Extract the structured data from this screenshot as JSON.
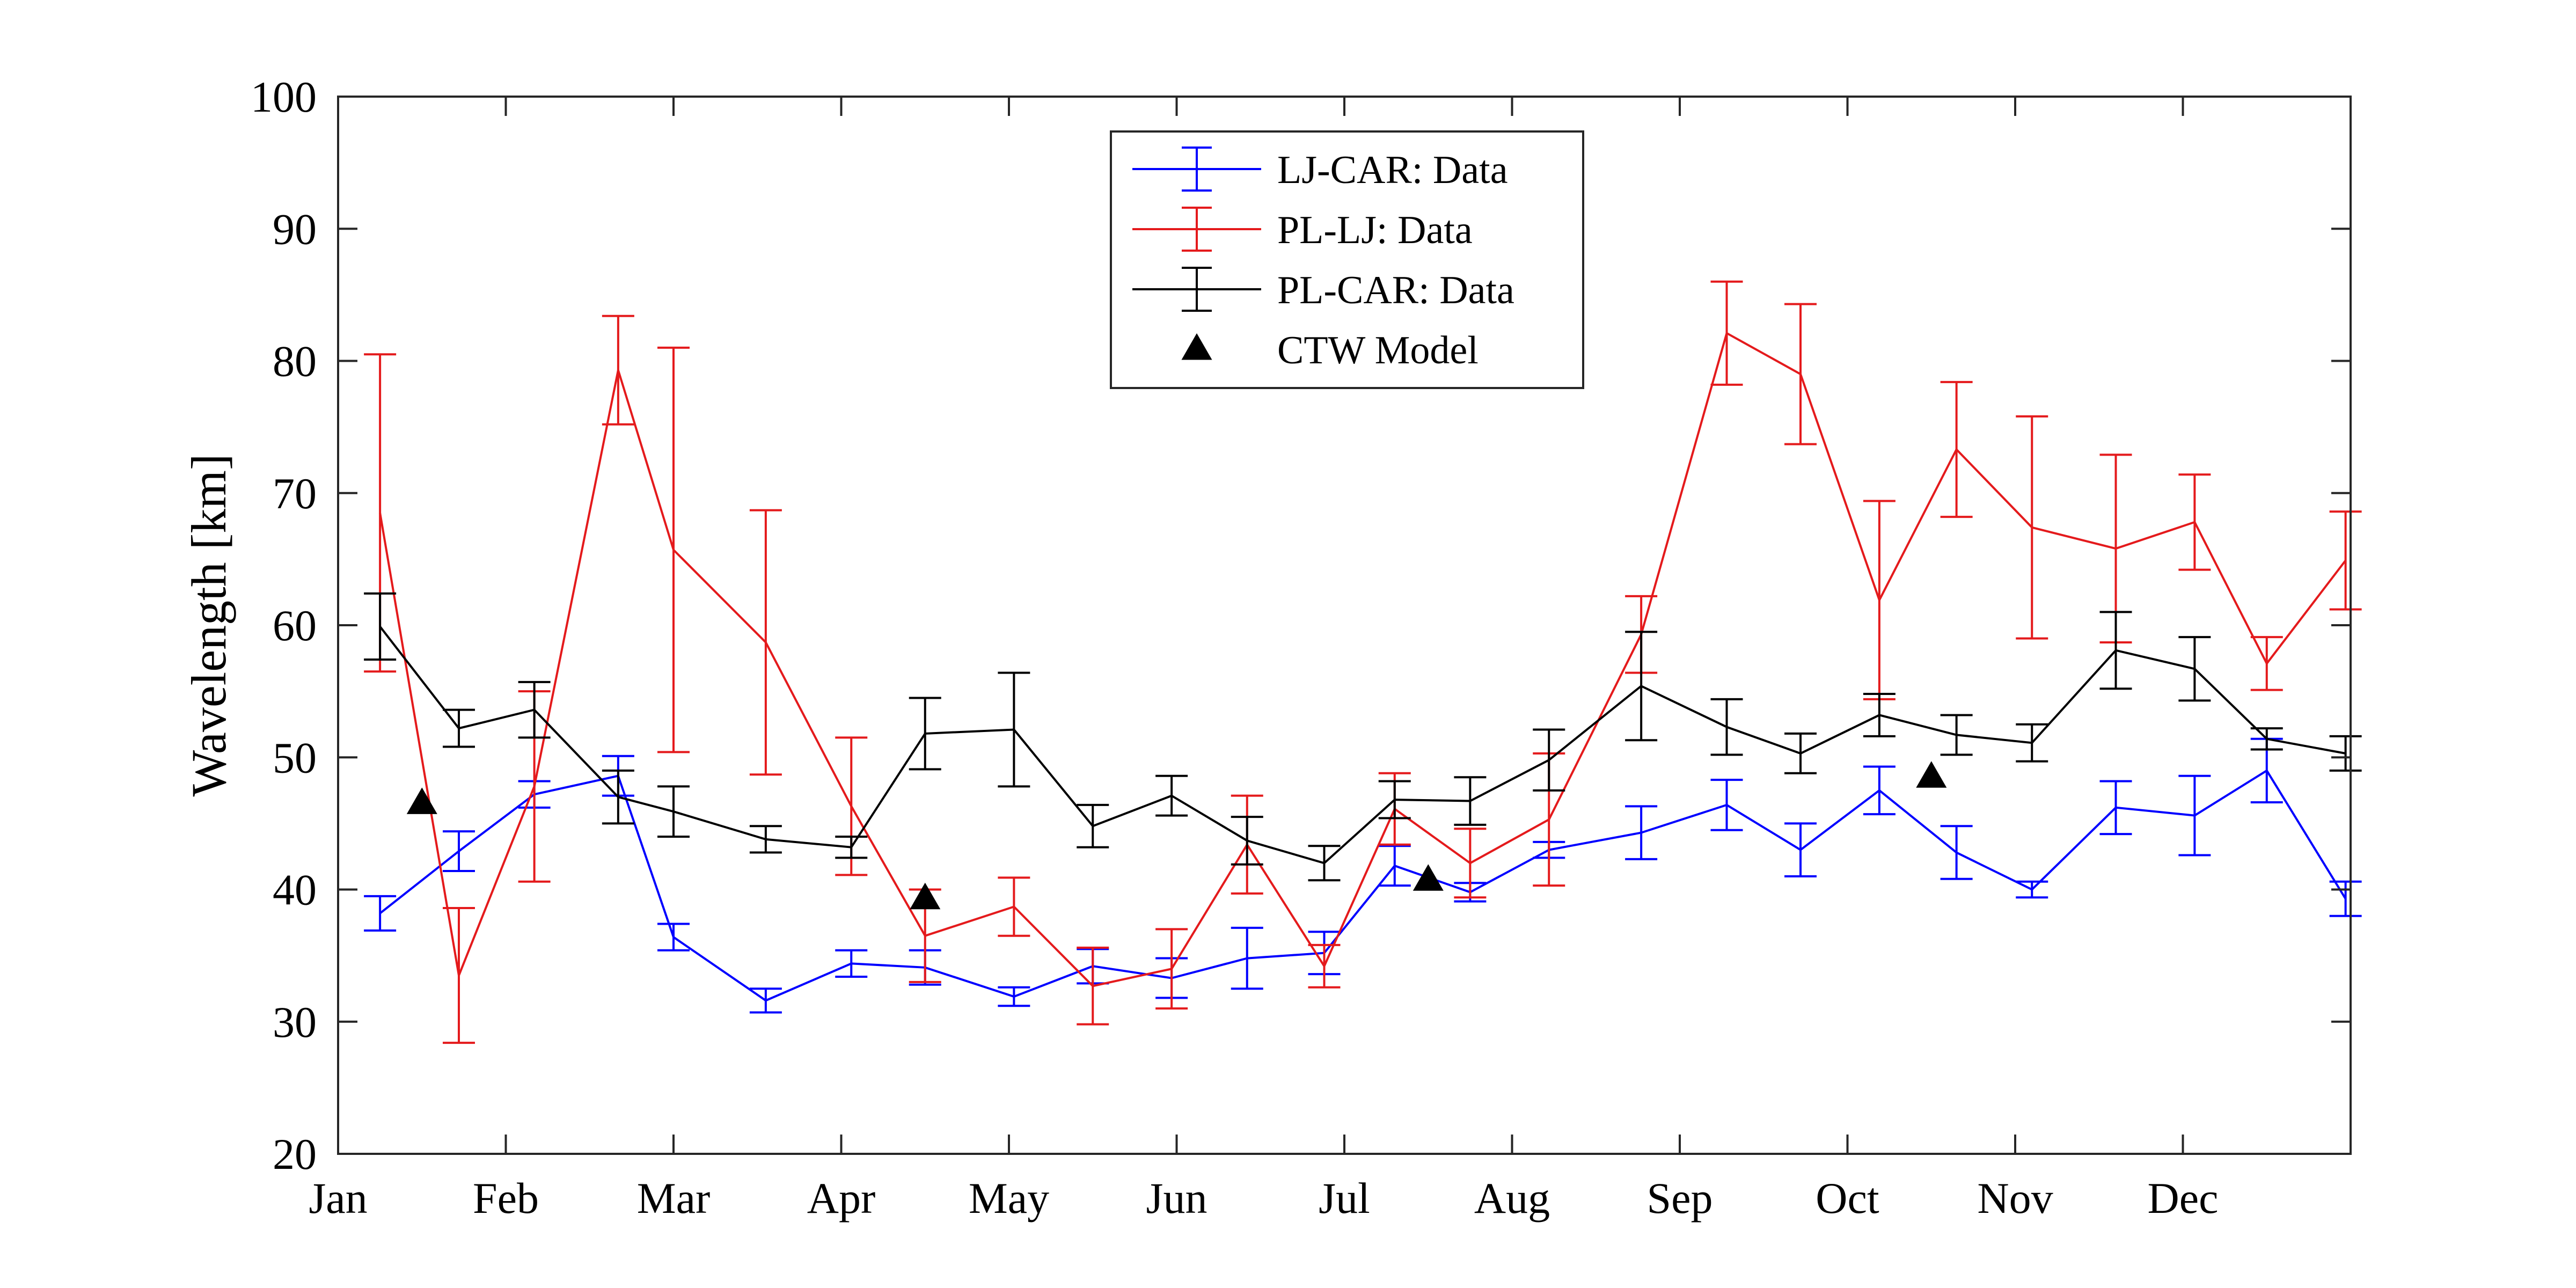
{
  "chart_data": {
    "type": "line",
    "title": "",
    "xlabel": "",
    "ylabel": "Wavelength [km]",
    "xlim": [
      0,
      12
    ],
    "ylim": [
      20,
      100
    ],
    "x_ticks": [
      {
        "label": "Jan",
        "value": 0
      },
      {
        "label": "Feb",
        "value": 1
      },
      {
        "label": "Mar",
        "value": 2
      },
      {
        "label": "Apr",
        "value": 3
      },
      {
        "label": "May",
        "value": 4
      },
      {
        "label": "Jun",
        "value": 5
      },
      {
        "label": "Jul",
        "value": 6
      },
      {
        "label": "Aug",
        "value": 7
      },
      {
        "label": "Sep",
        "value": 8
      },
      {
        "label": "Oct",
        "value": 9
      },
      {
        "label": "Nov",
        "value": 10
      },
      {
        "label": "Dec",
        "value": 11
      }
    ],
    "y_ticks": [
      20,
      30,
      40,
      50,
      60,
      70,
      80,
      90,
      100
    ],
    "grid": false,
    "legend_position": "top-center",
    "series": [
      {
        "name": "LJ-CAR: Data",
        "color": "#0000ff",
        "marker": "errorbar",
        "x": [
          0.25,
          0.72,
          1.17,
          1.67,
          2.0,
          2.55,
          3.06,
          3.5,
          4.03,
          4.5,
          4.97,
          5.42,
          5.88,
          6.3,
          6.75,
          7.22,
          7.77,
          8.28,
          8.72,
          9.19,
          9.65,
          10.1,
          10.6,
          11.07,
          11.5,
          11.97
        ],
        "y": [
          38.2,
          42.9,
          47.2,
          48.6,
          36.4,
          31.6,
          34.4,
          34.1,
          31.9,
          34.2,
          33.3,
          34.8,
          35.2,
          41.8,
          39.8,
          43.0,
          44.3,
          46.4,
          43.0,
          47.5,
          42.8,
          40.0,
          46.2,
          45.6,
          49.0,
          39.3
        ],
        "y_err": [
          1.3,
          1.5,
          1.0,
          1.5,
          1.0,
          0.9,
          1.0,
          1.3,
          0.7,
          1.3,
          1.5,
          2.3,
          1.6,
          1.5,
          0.7,
          0.6,
          2.0,
          1.9,
          2.0,
          1.8,
          2.0,
          0.6,
          2.0,
          3.0,
          2.4,
          1.3
        ]
      },
      {
        "name": "PL-LJ: Data",
        "color": "#e41a1c",
        "marker": "errorbar",
        "x": [
          0.25,
          0.72,
          1.17,
          1.67,
          2.0,
          2.55,
          3.06,
          3.5,
          4.03,
          4.5,
          4.97,
          5.42,
          5.88,
          6.3,
          6.75,
          7.22,
          7.77,
          8.28,
          8.72,
          9.19,
          9.65,
          10.1,
          10.6,
          11.07,
          11.5,
          11.97
        ],
        "y": [
          68.5,
          33.5,
          47.8,
          79.3,
          65.7,
          58.7,
          46.3,
          36.5,
          38.7,
          32.7,
          34.0,
          43.4,
          34.2,
          46.1,
          42.0,
          45.3,
          59.3,
          82.1,
          79.0,
          61.9,
          73.3,
          67.4,
          65.8,
          67.8,
          57.1,
          64.9
        ],
        "y_err": [
          12.0,
          5.1,
          7.2,
          4.1,
          15.3,
          10.0,
          5.2,
          3.5,
          2.2,
          2.9,
          3.0,
          3.7,
          1.6,
          2.7,
          2.6,
          5.0,
          2.9,
          3.9,
          5.3,
          7.5,
          5.1,
          8.4,
          7.1,
          3.6,
          2.0,
          3.7
        ]
      },
      {
        "name": "PL-CAR: Data",
        "color": "#000000",
        "marker": "errorbar",
        "x": [
          0.25,
          0.72,
          1.17,
          1.67,
          2.0,
          2.55,
          3.06,
          3.5,
          4.03,
          4.5,
          4.97,
          5.42,
          5.88,
          6.3,
          6.75,
          7.22,
          7.77,
          8.28,
          8.72,
          9.19,
          9.65,
          10.1,
          10.6,
          11.07,
          11.5,
          11.97
        ],
        "y": [
          59.9,
          52.2,
          53.6,
          47.0,
          45.9,
          43.8,
          43.2,
          51.8,
          52.1,
          44.8,
          47.1,
          43.7,
          42.0,
          46.8,
          46.7,
          49.8,
          55.4,
          52.3,
          50.3,
          53.2,
          51.7,
          51.1,
          58.1,
          56.7,
          51.4,
          50.3
        ],
        "y_err": [
          2.5,
          1.4,
          2.1,
          2.0,
          1.9,
          1.0,
          0.8,
          2.7,
          4.3,
          1.6,
          1.5,
          1.8,
          1.3,
          1.4,
          1.8,
          2.3,
          4.1,
          2.1,
          1.5,
          1.6,
          1.5,
          1.4,
          2.9,
          2.4,
          0.8,
          1.3
        ]
      }
    ],
    "model_points": {
      "name": "CTW Model",
      "color": "#000000",
      "marker": "triangle",
      "x": [
        0.5,
        3.5,
        6.5,
        9.5
      ],
      "y": [
        46.5,
        39.3,
        40.7,
        48.5
      ]
    }
  }
}
